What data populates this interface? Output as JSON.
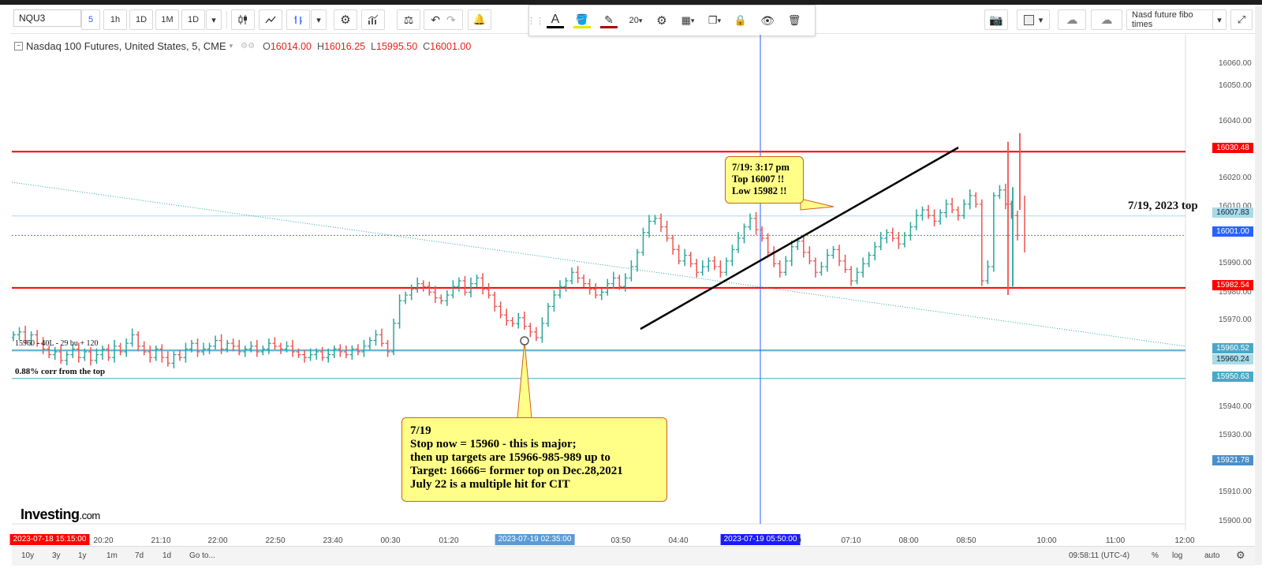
{
  "toolbar": {
    "symbol": "NQU3",
    "intervals": [
      "5",
      "1h",
      "1D",
      "1M",
      "1D"
    ],
    "active_interval": "5",
    "font_size": "20",
    "template_name": "Nasd future fibo times"
  },
  "legend": {
    "title": "Nasdaq 100 Futures, United States, 5, CME",
    "open": "16014.00",
    "high": "16016.25",
    "low": "15995.50",
    "close": "16001.00"
  },
  "price_axis": {
    "ticks": [
      "16060.00",
      "16050.00",
      "16040.00",
      "16020.00",
      "16010.00",
      "15990.00",
      "15980.00",
      "15970.00",
      "15940.00",
      "15930.00",
      "15910.00",
      "15900.00"
    ],
    "tags": [
      {
        "label": "16030.48",
        "color": "#ff0000"
      },
      {
        "label": "16007.83",
        "color": "#a9dbe6"
      },
      {
        "label": "16001.00",
        "color": "#2962ff"
      },
      {
        "label": "15982.54",
        "color": "#ff0000"
      },
      {
        "label": "15960.52",
        "color": "#4aa8c8"
      },
      {
        "label": "15960.24",
        "color": "#a9dbe6"
      },
      {
        "label": "15950.63",
        "color": "#4aa8c8"
      },
      {
        "label": "15921.78",
        "color": "#4a90c8"
      }
    ]
  },
  "time_axis": {
    "labels": [
      "20:20",
      "21:10",
      "22:00",
      "22:50",
      "23:40",
      "00:30",
      "01:20",
      "03:50",
      "04:40",
      "0",
      "07:10",
      "08:00",
      "08:50",
      "10:00",
      "11:00",
      "12:00"
    ],
    "highlight_start": "2023-07-18 15:15:00",
    "highlight_mid": "2023-07-19 02:35:00",
    "highlight_cursor": "2023-07-19 05:50:00"
  },
  "annotations": {
    "callout_top": [
      "7/19: 3:17 pm",
      "Top 16007 !!",
      "Low 15982 !!"
    ],
    "callout_bottom": [
      "7/19",
      "Stop now = 15960 - this is major;",
      "then up targets are 15966-985-989 up to",
      "Target: 16666= former top on Dec.28,2021",
      "July 22 is a multiple hit for CIT"
    ],
    "top_note": "7/19, 2023 top",
    "corr_note": "0.88% corr from the top",
    "levels_note": "15960 - 40L - 29 bu + 120"
  },
  "logo": {
    "main": "Investing",
    "suffix": ".com"
  },
  "bottom": {
    "ranges": [
      "10y",
      "3y",
      "1y",
      "1m",
      "7d",
      "1d",
      "Go to..."
    ],
    "clock": "09:58:11 (UTC-4)",
    "options": [
      "%",
      "log",
      "auto"
    ]
  },
  "colors": {
    "up": "#26a69a",
    "down": "#ef5350",
    "level_red": "#ff0000",
    "level_blue": "#4aa8c8",
    "cursor": "#2962ff"
  },
  "chart_data": {
    "type": "candlestick",
    "symbol": "NQU3",
    "timeframe": "5",
    "horizontal_levels": [
      16030.48,
      16007.83,
      16001.0,
      15982.54,
      15960.52,
      15960.24,
      15950.63
    ],
    "ylim": [
      15897,
      16068
    ],
    "price_path": [
      15966,
      15967,
      15964,
      15966,
      15963,
      15961,
      15959,
      15960,
      15957,
      15959,
      15961,
      15958,
      15960,
      15957,
      15959,
      15961,
      15958,
      15962,
      15960,
      15963,
      15966,
      15962,
      15960,
      15958,
      15961,
      15958,
      15956,
      15959,
      15958,
      15961,
      15963,
      15960,
      15961,
      15962,
      15964,
      15961,
      15963,
      15962,
      15960,
      15961,
      15962,
      15960,
      15961,
      15963,
      15962,
      15961,
      15962,
      15960,
      15959,
      15958,
      15959,
      15960,
      15958,
      15959,
      15961,
      15960,
      15959,
      15961,
      15960,
      15962,
      15964,
      15966,
      15963,
      15960,
      15970,
      15978,
      15980,
      15982,
      15984,
      15983,
      15981,
      15979,
      15978,
      15980,
      15983,
      15985,
      15981,
      15984,
      15986,
      15982,
      15980,
      15976,
      15973,
      15971,
      15970,
      15972,
      15969,
      15967,
      15965,
      15970,
      15976,
      15980,
      15983,
      15985,
      15988,
      15986,
      15984,
      15982,
      15980,
      15981,
      15984,
      15986,
      15983,
      15986,
      15990,
      15995,
      16002,
      16006,
      16007,
      16004,
      16000,
      15996,
      15992,
      15994,
      15991,
      15988,
      15990,
      15992,
      15990,
      15988,
      15992,
      15996,
      16000,
      16004,
      16007,
      16003,
      16000,
      15995,
      15991,
      15988,
      15992,
      15997,
      15999,
      15995,
      15992,
      15988,
      15990,
      15994,
      15996,
      15992,
      15989,
      15985,
      15988,
      15991,
      15994,
      15997,
      16000,
      16002,
      16000,
      15998,
      16001,
      16004,
      16008,
      16010,
      16008,
      16006,
      16009,
      16012,
      16010,
      16008,
      16012,
      16015,
      16012,
      15985,
      15990,
      16015,
      16017,
      16012,
      16008,
      16001
    ]
  }
}
